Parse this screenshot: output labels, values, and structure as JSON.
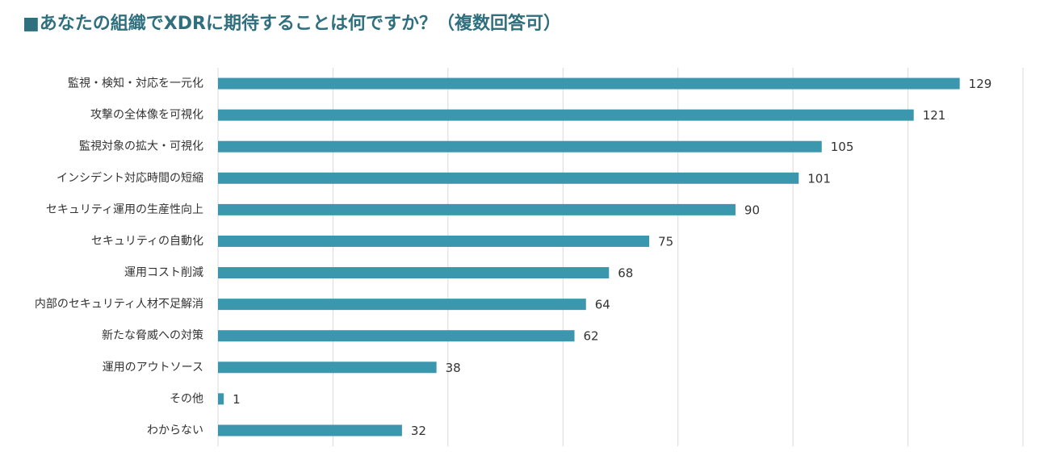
{
  "chart_data": {
    "type": "bar",
    "orientation": "horizontal",
    "title": "■あなたの組織でXDRに期待することは何ですか？（複数回答可）",
    "categories": [
      "監視・検知・対応を一元化",
      "攻撃の全体像を可視化",
      "監視対象の拡大・可視化",
      "インシデント対応時間の短縮",
      "セキュリティ運用の生産性向上",
      "セキュリティの自動化",
      "運用コスト削減",
      "内部のセキュリティ人材不足解消",
      "新たな脅威への対策",
      "運用のアウトソース",
      "その他",
      "わからない"
    ],
    "values": [
      129,
      121,
      105,
      101,
      90,
      75,
      68,
      64,
      62,
      38,
      1,
      32
    ],
    "color": "#3b97ad",
    "xlim": [
      0,
      140
    ],
    "xticks": [
      0,
      20,
      40,
      60,
      80,
      100,
      120,
      140
    ],
    "grid": true
  }
}
